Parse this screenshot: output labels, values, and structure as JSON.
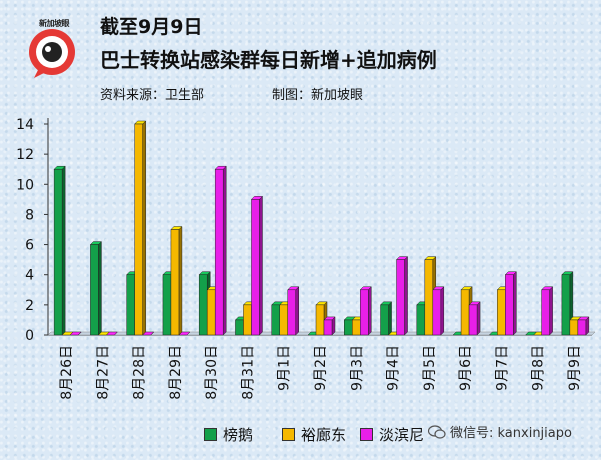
{
  "header": {
    "logo_text": "新加坡眼",
    "title_line1": "截至9月9日",
    "title_line2": "巴士转换站感染群每日新增+追加病例",
    "source": "资料来源：卫生部",
    "maker": "制图：新加坡眼"
  },
  "watermark": "微信号: kanxinjiapo",
  "colors": {
    "series1": "#13a04a",
    "series2": "#f5b800",
    "series3": "#e81fe8",
    "background": "#dbe9f6"
  },
  "chart_data": {
    "type": "bar",
    "categories": [
      "8月26日",
      "8月27日",
      "8月28日",
      "8月29日",
      "8月30日",
      "8月31日",
      "9月1日",
      "9月2日",
      "9月3日",
      "9月4日",
      "9月5日",
      "9月6日",
      "9月7日",
      "9月8日",
      "9月9日"
    ],
    "series": [
      {
        "name": "榜鹅",
        "values": [
          11,
          6,
          4,
          4,
          4,
          1,
          2,
          0,
          1,
          2,
          2,
          0,
          0,
          0,
          4
        ]
      },
      {
        "name": "裕廊东",
        "values": [
          0,
          0,
          14,
          7,
          3,
          2,
          2,
          2,
          1,
          0,
          5,
          3,
          3,
          0,
          1
        ]
      },
      {
        "name": "淡滨尼",
        "values": [
          0,
          0,
          0,
          0,
          11,
          9,
          3,
          1,
          3,
          5,
          3,
          2,
          4,
          3,
          1
        ]
      }
    ],
    "yticks": [
      0,
      2,
      4,
      6,
      8,
      10,
      12,
      14
    ],
    "ylim": [
      0,
      14
    ],
    "grid": false,
    "legend_position": "bottom",
    "style": "3d-bar"
  }
}
